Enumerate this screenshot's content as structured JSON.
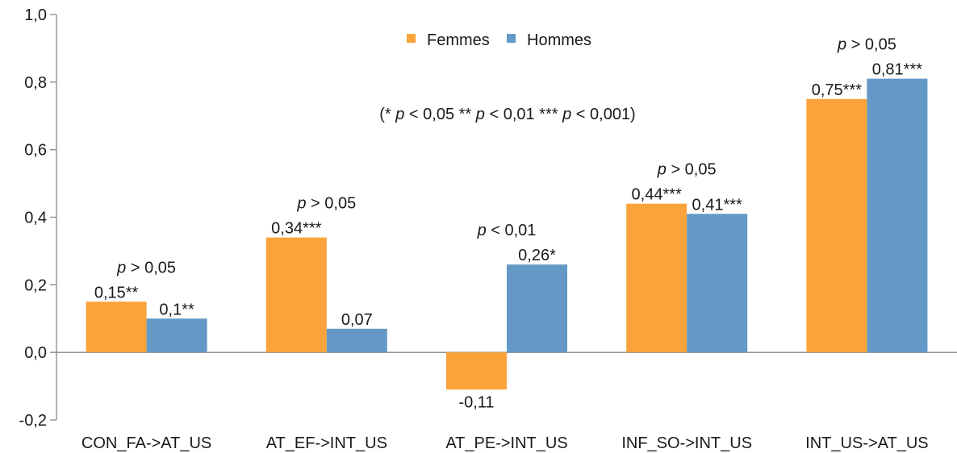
{
  "chart_data": {
    "type": "bar",
    "categories": [
      "CON_FA->AT_US",
      "AT_EF->INT_US",
      "AT_PE->INT_US",
      "INF_SO->INT_US",
      "INT_US->AT_US"
    ],
    "series": [
      {
        "name": "Femmes",
        "color": "#F9A33A",
        "values": [
          0.15,
          0.34,
          -0.11,
          0.44,
          0.75
        ],
        "labels": [
          "0,15**",
          "0,34***",
          "-0,11",
          "0,44***",
          "0,75***"
        ]
      },
      {
        "name": "Hommes",
        "color": "#6498C6",
        "values": [
          0.1,
          0.07,
          0.26,
          0.41,
          0.81
        ],
        "labels": [
          "0,1**",
          "0,07",
          "0,26*",
          "0,41***",
          "0,81***"
        ]
      }
    ],
    "group_annotations": [
      {
        "p": "p",
        "rest": " > 0,05"
      },
      {
        "p": "p",
        "rest": " > 0,05"
      },
      {
        "p": "p",
        "rest": " < 0,01"
      },
      {
        "p": "p",
        "rest": " > 0,05"
      },
      {
        "p": "p",
        "rest": " > 0,05"
      }
    ],
    "significance_note": {
      "parts": [
        {
          "t": "(* ",
          "i": false
        },
        {
          "t": "p",
          "i": true
        },
        {
          "t": " < 0,05  ** ",
          "i": false
        },
        {
          "t": "p",
          "i": true
        },
        {
          "t": " < 0,01  *** ",
          "i": false
        },
        {
          "t": "p",
          "i": true
        },
        {
          "t": " < 0,001)",
          "i": false
        }
      ]
    },
    "ylim": [
      -0.2,
      1.0
    ],
    "yticks": [
      -0.2,
      0.0,
      0.2,
      0.4,
      0.6,
      0.8,
      1.0
    ],
    "ytick_labels": [
      "-0,2",
      "0,0",
      "0,2",
      "0,4",
      "0,6",
      "0,8",
      "1,0"
    ],
    "legend_position": "top-center",
    "grid": false
  }
}
